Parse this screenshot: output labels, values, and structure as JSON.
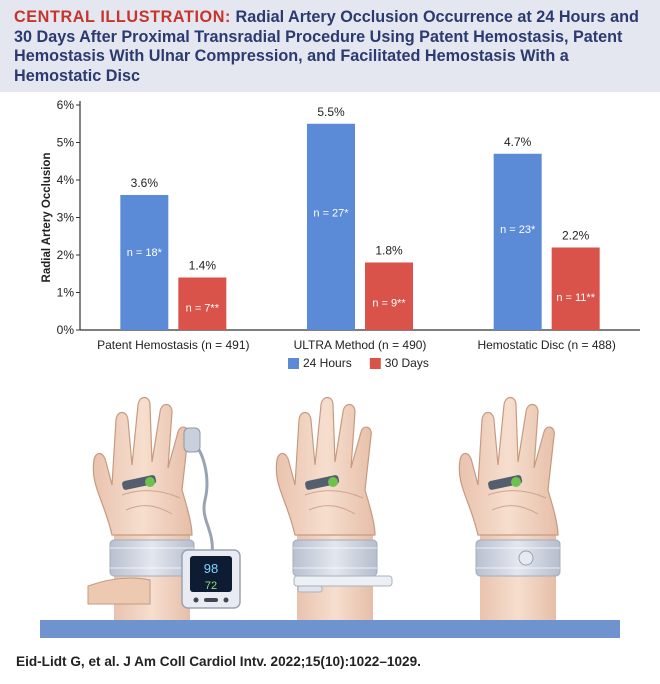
{
  "header": {
    "kicker": "CENTRAL ILLUSTRATION:",
    "title": "Radial Artery Occlusion Occurrence at 24 Hours and 30 Days After Proximal Transradial Procedure Using Patent Hemostasis, Patent Hemostasis With Ulnar Compression, and Facilitated Hemostasis With a Hemostatic Disc"
  },
  "chart_data": {
    "type": "bar",
    "ylabel": "Radial Artery Occlusion",
    "ylim": [
      0,
      6
    ],
    "yticks": [
      "0%",
      "1%",
      "2%",
      "3%",
      "4%",
      "5%",
      "6%"
    ],
    "grid": false,
    "legend_position": "bottom-center",
    "categories": [
      "Patent Hemostasis (n = 491)",
      "ULTRA Method (n = 490)",
      "Hemostatic Disc (n = 488)"
    ],
    "series": [
      {
        "name": "24 Hours",
        "color": "#5b8bd6",
        "values": [
          3.6,
          5.5,
          4.7
        ],
        "value_labels": [
          "3.6%",
          "5.5%",
          "4.7%"
        ],
        "n_labels": [
          "n = 18*",
          "n = 27*",
          "n = 23*"
        ]
      },
      {
        "name": "30 Days",
        "color": "#d9534a",
        "values": [
          1.4,
          1.8,
          2.2
        ],
        "value_labels": [
          "1.4%",
          "1.8%",
          "2.2%"
        ],
        "n_labels": [
          "n = 7**",
          "n = 9**",
          "n = 11**"
        ]
      }
    ]
  },
  "illustration": {
    "monitor_reading_top": "98",
    "monitor_reading_bottom": "72",
    "skin_color": "#f3d8c7",
    "band_color": "#cdd3e0",
    "base_color": "#6f93cf"
  },
  "citation": "Eid-Lidt G, et al. J Am Coll Cardiol Intv. 2022;15(10):1022–1029."
}
